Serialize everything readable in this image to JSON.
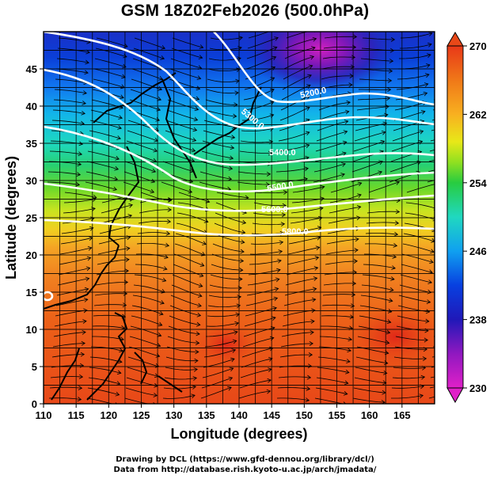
{
  "title": "GSM 18Z02Feb2026 (500.0hPa)",
  "x_axis": {
    "label": "Longitude (degrees)",
    "range": [
      110,
      170
    ],
    "ticks": [
      "110",
      "115",
      "120",
      "125",
      "130",
      "135",
      "140",
      "145",
      "150",
      "155",
      "160",
      "165"
    ]
  },
  "y_axis": {
    "label": "Latitude (degrees)",
    "range": [
      0,
      50
    ],
    "ticks": [
      "0",
      "5",
      "10",
      "15",
      "20",
      "25",
      "30",
      "35",
      "40",
      "45"
    ]
  },
  "colorbar": {
    "range": [
      230,
      270
    ],
    "labels": [
      "230",
      "238",
      "246",
      "254",
      "262",
      "270"
    ],
    "colors": [
      "#e020c8",
      "#7010b0",
      "#0820c8",
      "#0860f0",
      "#10b8e8",
      "#20e0b0",
      "#20d040",
      "#80e020",
      "#e8e818",
      "#f8b020",
      "#f07818",
      "#e83818"
    ]
  },
  "contour_labels": [
    "5200.0",
    "5300.0",
    "5400.0",
    "5500.0",
    "5600.0",
    "5800.0"
  ],
  "credits": {
    "line1": "Drawing by DCL (https://www.gfd-dennou.org/library/dcl/)",
    "line2": "Data from http://database.rish.kyoto-u.ac.jp/arch/jmadata/"
  }
}
